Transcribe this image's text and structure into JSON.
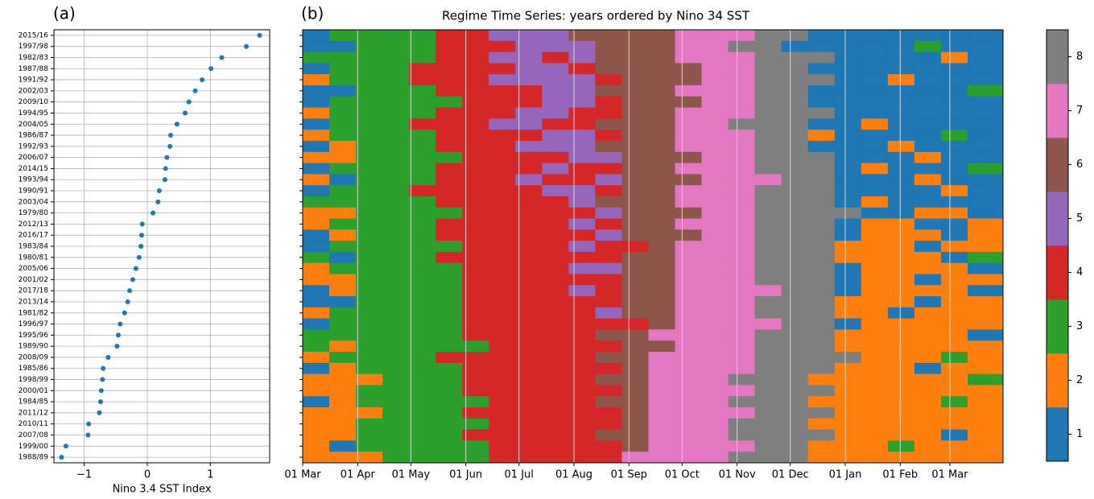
{
  "chart_data": [
    {
      "type": "scatter",
      "panel_label": "(a)",
      "xlabel": "Nino 3.4 SST Index",
      "color": "#1f77b4",
      "grid": true,
      "categories": [
        "2015/16",
        "1997/98",
        "1982/83",
        "1987/88",
        "1991/92",
        "2002/03",
        "2009/10",
        "1994/95",
        "2004/05",
        "1986/87",
        "1992/93",
        "2006/07",
        "2014/15",
        "1993/94",
        "1990/91",
        "2003/04",
        "1979/80",
        "2012/13",
        "2016/17",
        "1983/84",
        "1980/81",
        "2005/06",
        "2001/02",
        "2017/18",
        "2013/14",
        "1981/82",
        "1996/97",
        "1995/96",
        "1989/90",
        "2008/09",
        "1985/86",
        "1998/99",
        "2000/01",
        "1984/85",
        "2011/12",
        "2010/11",
        "2007/08",
        "1999/00",
        "1988/89"
      ],
      "values": [
        1.78,
        1.57,
        1.18,
        1.01,
        0.87,
        0.76,
        0.66,
        0.6,
        0.47,
        0.37,
        0.36,
        0.31,
        0.29,
        0.28,
        0.19,
        0.17,
        0.09,
        -0.08,
        -0.09,
        -0.1,
        -0.13,
        -0.18,
        -0.23,
        -0.28,
        -0.31,
        -0.36,
        -0.43,
        -0.46,
        -0.48,
        -0.62,
        -0.7,
        -0.71,
        -0.73,
        -0.74,
        -0.76,
        -0.93,
        -0.94,
        -1.29,
        -1.36
      ],
      "xlim": [
        -1.48,
        1.94
      ],
      "xticks": [
        {
          "value": -1,
          "label": "−1"
        },
        0,
        1
      ]
    },
    {
      "type": "heatmap",
      "panel_label": "(b)",
      "title": "Regime Time Series: years ordered by Nino 34 SST",
      "xlim": [
        0,
        395
      ],
      "xticks": [
        {
          "value": 0,
          "label": "01 Mar"
        },
        {
          "value": 31,
          "label": "01 Apr"
        },
        {
          "value": 61,
          "label": "01 May"
        },
        {
          "value": 92,
          "label": "01 Jun"
        },
        {
          "value": 122,
          "label": "01 Jul"
        },
        {
          "value": 153,
          "label": "01 Aug"
        },
        {
          "value": 184,
          "label": "01 Sep"
        },
        {
          "value": 214,
          "label": "01 Oct"
        },
        {
          "value": 245,
          "label": "01 Nov"
        },
        {
          "value": 275,
          "label": "01 Dec"
        },
        {
          "value": 306,
          "label": "01 Jan"
        },
        {
          "value": 337,
          "label": "01 Feb"
        },
        {
          "value": 365,
          "label": "01 Mar"
        }
      ],
      "xbins": [
        0,
        15,
        30,
        45,
        60,
        75,
        90,
        105,
        120,
        135,
        150,
        165,
        180,
        195,
        210,
        225,
        240,
        255,
        270,
        285,
        300,
        315,
        330,
        345,
        360,
        375,
        395
      ],
      "colors": [
        "#1f77b4",
        "#ff7f0e",
        "#2ca02c",
        "#d62728",
        "#9467bd",
        "#8c564b",
        "#e377c2",
        "#7f7f7f"
      ],
      "clim": [
        0.5,
        8.5
      ],
      "cticks": [
        1,
        2,
        3,
        4,
        5,
        6,
        7,
        8
      ],
      "z": [
        [
          1,
          3,
          3,
          3,
          3,
          4,
          4,
          5,
          5,
          5,
          6,
          6,
          6,
          6,
          7,
          7,
          7,
          8,
          8,
          1,
          1,
          1,
          1,
          1,
          1,
          1
        ],
        [
          1,
          1,
          3,
          3,
          3,
          4,
          4,
          4,
          5,
          5,
          5,
          6,
          6,
          6,
          7,
          7,
          8,
          8,
          1,
          1,
          1,
          1,
          1,
          3,
          1,
          1
        ],
        [
          3,
          3,
          3,
          3,
          3,
          4,
          4,
          5,
          5,
          4,
          5,
          6,
          6,
          6,
          7,
          7,
          7,
          8,
          8,
          8,
          1,
          1,
          1,
          1,
          2,
          1
        ],
        [
          1,
          3,
          3,
          3,
          4,
          4,
          4,
          4,
          5,
          5,
          4,
          6,
          6,
          6,
          6,
          7,
          7,
          8,
          8,
          1,
          1,
          1,
          1,
          1,
          1,
          1
        ],
        [
          2,
          3,
          3,
          3,
          4,
          4,
          4,
          5,
          5,
          5,
          5,
          4,
          6,
          6,
          6,
          7,
          7,
          8,
          8,
          8,
          1,
          1,
          2,
          1,
          1,
          1
        ],
        [
          1,
          1,
          3,
          3,
          3,
          4,
          4,
          4,
          4,
          5,
          5,
          6,
          6,
          6,
          7,
          7,
          7,
          8,
          8,
          1,
          1,
          1,
          1,
          1,
          1,
          3
        ],
        [
          1,
          3,
          3,
          3,
          3,
          3,
          4,
          4,
          4,
          5,
          5,
          4,
          6,
          6,
          6,
          7,
          7,
          8,
          8,
          1,
          1,
          1,
          1,
          1,
          1,
          1
        ],
        [
          2,
          3,
          3,
          3,
          3,
          4,
          4,
          4,
          5,
          5,
          4,
          4,
          6,
          6,
          7,
          7,
          7,
          8,
          8,
          8,
          1,
          1,
          1,
          1,
          1,
          1
        ],
        [
          1,
          3,
          3,
          3,
          4,
          4,
          4,
          5,
          5,
          4,
          4,
          6,
          6,
          6,
          7,
          7,
          8,
          8,
          8,
          1,
          1,
          2,
          1,
          1,
          1,
          1
        ],
        [
          2,
          3,
          3,
          3,
          3,
          4,
          4,
          4,
          4,
          5,
          5,
          4,
          6,
          6,
          7,
          7,
          7,
          8,
          8,
          2,
          1,
          1,
          1,
          1,
          3,
          1
        ],
        [
          1,
          2,
          3,
          3,
          3,
          4,
          4,
          4,
          5,
          5,
          5,
          6,
          6,
          6,
          7,
          7,
          7,
          8,
          8,
          1,
          1,
          1,
          2,
          1,
          1,
          1
        ],
        [
          2,
          2,
          3,
          3,
          3,
          3,
          4,
          4,
          4,
          4,
          5,
          5,
          6,
          6,
          6,
          7,
          7,
          8,
          8,
          8,
          1,
          1,
          1,
          2,
          1,
          1
        ],
        [
          1,
          3,
          3,
          3,
          3,
          4,
          4,
          4,
          4,
          5,
          4,
          4,
          6,
          6,
          7,
          7,
          7,
          8,
          8,
          8,
          1,
          2,
          1,
          1,
          1,
          3
        ],
        [
          2,
          1,
          3,
          3,
          3,
          4,
          4,
          4,
          5,
          4,
          4,
          5,
          6,
          6,
          6,
          7,
          7,
          7,
          8,
          8,
          1,
          1,
          1,
          2,
          1,
          1
        ],
        [
          1,
          3,
          3,
          3,
          4,
          4,
          4,
          4,
          4,
          5,
          5,
          4,
          6,
          6,
          7,
          7,
          7,
          8,
          8,
          8,
          1,
          1,
          1,
          1,
          2,
          1
        ],
        [
          3,
          3,
          3,
          3,
          3,
          4,
          4,
          4,
          4,
          4,
          5,
          6,
          6,
          6,
          7,
          7,
          7,
          8,
          8,
          8,
          1,
          2,
          1,
          1,
          1,
          1
        ],
        [
          2,
          2,
          3,
          3,
          3,
          3,
          4,
          4,
          4,
          4,
          4,
          5,
          6,
          6,
          6,
          7,
          7,
          8,
          8,
          8,
          8,
          1,
          1,
          2,
          2,
          1
        ],
        [
          2,
          3,
          3,
          3,
          3,
          4,
          4,
          4,
          4,
          4,
          5,
          4,
          6,
          6,
          7,
          7,
          7,
          8,
          8,
          8,
          1,
          2,
          2,
          1,
          1,
          2
        ],
        [
          1,
          2,
          3,
          3,
          3,
          4,
          4,
          4,
          4,
          4,
          4,
          5,
          6,
          6,
          6,
          7,
          7,
          8,
          8,
          8,
          1,
          2,
          2,
          2,
          1,
          2
        ],
        [
          1,
          3,
          3,
          3,
          3,
          3,
          4,
          4,
          4,
          4,
          5,
          4,
          4,
          6,
          7,
          7,
          7,
          8,
          8,
          8,
          2,
          2,
          2,
          1,
          2,
          2
        ],
        [
          3,
          1,
          3,
          3,
          3,
          4,
          4,
          4,
          4,
          4,
          4,
          4,
          6,
          6,
          7,
          7,
          7,
          8,
          8,
          8,
          2,
          2,
          2,
          2,
          1,
          3
        ],
        [
          2,
          3,
          3,
          3,
          3,
          3,
          4,
          4,
          4,
          4,
          5,
          5,
          6,
          6,
          7,
          7,
          7,
          8,
          8,
          8,
          1,
          2,
          2,
          2,
          2,
          1
        ],
        [
          2,
          2,
          3,
          3,
          3,
          3,
          4,
          4,
          4,
          4,
          4,
          4,
          6,
          6,
          7,
          7,
          7,
          8,
          8,
          8,
          1,
          2,
          2,
          1,
          2,
          2
        ],
        [
          1,
          2,
          3,
          3,
          3,
          3,
          4,
          4,
          4,
          4,
          5,
          4,
          6,
          6,
          7,
          7,
          7,
          7,
          8,
          8,
          1,
          2,
          2,
          2,
          2,
          1
        ],
        [
          1,
          1,
          3,
          3,
          3,
          3,
          4,
          4,
          4,
          4,
          4,
          4,
          6,
          6,
          7,
          7,
          7,
          8,
          8,
          8,
          2,
          2,
          2,
          1,
          2,
          2
        ],
        [
          2,
          3,
          3,
          3,
          3,
          3,
          4,
          4,
          4,
          4,
          4,
          5,
          6,
          6,
          7,
          7,
          7,
          8,
          8,
          8,
          2,
          2,
          1,
          2,
          2,
          2
        ],
        [
          1,
          3,
          3,
          3,
          3,
          3,
          4,
          4,
          4,
          4,
          4,
          4,
          4,
          6,
          7,
          7,
          7,
          7,
          8,
          8,
          1,
          2,
          2,
          2,
          2,
          2
        ],
        [
          3,
          3,
          3,
          3,
          3,
          3,
          4,
          4,
          4,
          4,
          4,
          6,
          6,
          7,
          7,
          7,
          7,
          8,
          8,
          8,
          2,
          2,
          2,
          2,
          2,
          1
        ],
        [
          3,
          2,
          3,
          3,
          3,
          3,
          3,
          4,
          4,
          4,
          4,
          4,
          6,
          6,
          7,
          7,
          7,
          8,
          8,
          8,
          2,
          2,
          2,
          2,
          2,
          2
        ],
        [
          2,
          3,
          3,
          3,
          3,
          4,
          4,
          4,
          4,
          4,
          4,
          6,
          6,
          7,
          7,
          7,
          7,
          8,
          8,
          8,
          8,
          2,
          2,
          2,
          3,
          2
        ],
        [
          1,
          2,
          3,
          3,
          3,
          3,
          4,
          4,
          4,
          4,
          4,
          4,
          6,
          7,
          7,
          7,
          7,
          8,
          8,
          8,
          2,
          2,
          2,
          1,
          2,
          2
        ],
        [
          2,
          2,
          2,
          3,
          3,
          3,
          4,
          4,
          4,
          4,
          4,
          6,
          6,
          7,
          7,
          7,
          8,
          8,
          8,
          2,
          2,
          2,
          2,
          2,
          2,
          3
        ],
        [
          2,
          2,
          3,
          3,
          3,
          3,
          4,
          4,
          4,
          4,
          4,
          4,
          6,
          7,
          7,
          7,
          7,
          8,
          8,
          8,
          2,
          2,
          2,
          2,
          2,
          2
        ],
        [
          1,
          2,
          3,
          3,
          3,
          3,
          3,
          4,
          4,
          4,
          4,
          6,
          6,
          7,
          7,
          7,
          8,
          8,
          8,
          2,
          2,
          2,
          2,
          2,
          3,
          2
        ],
        [
          2,
          2,
          2,
          3,
          3,
          3,
          4,
          4,
          4,
          4,
          4,
          4,
          6,
          7,
          7,
          7,
          7,
          8,
          8,
          8,
          2,
          2,
          2,
          2,
          2,
          2
        ],
        [
          2,
          2,
          3,
          3,
          3,
          3,
          3,
          4,
          4,
          4,
          4,
          4,
          6,
          7,
          7,
          7,
          8,
          8,
          8,
          2,
          2,
          2,
          2,
          2,
          2,
          2
        ],
        [
          2,
          2,
          3,
          3,
          3,
          3,
          4,
          4,
          4,
          4,
          4,
          6,
          6,
          7,
          7,
          7,
          8,
          8,
          8,
          8,
          2,
          2,
          2,
          2,
          1,
          2
        ],
        [
          2,
          1,
          3,
          3,
          3,
          3,
          3,
          4,
          4,
          4,
          4,
          4,
          6,
          7,
          7,
          7,
          7,
          8,
          8,
          2,
          2,
          2,
          3,
          2,
          2,
          2
        ],
        [
          2,
          2,
          2,
          3,
          3,
          3,
          3,
          4,
          4,
          4,
          4,
          4,
          7,
          7,
          7,
          7,
          8,
          8,
          8,
          2,
          2,
          2,
          2,
          2,
          2,
          2
        ]
      ]
    }
  ]
}
